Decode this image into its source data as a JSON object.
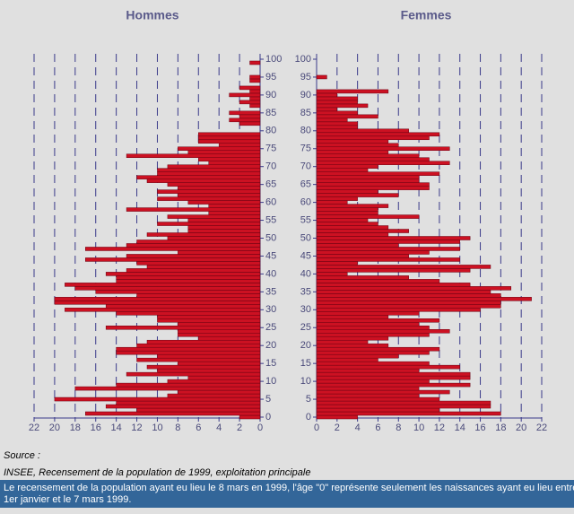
{
  "chart_data": [
    {
      "type": "hbar",
      "title": "Hommes",
      "x_reversed": true,
      "color": "#cc1122",
      "grid": true,
      "xlim": [
        0,
        22
      ],
      "xticks": [
        0,
        2,
        4,
        6,
        8,
        10,
        12,
        14,
        16,
        18,
        20,
        22
      ],
      "ylim": [
        0,
        100
      ],
      "yticks": [
        0,
        5,
        10,
        15,
        20,
        25,
        30,
        35,
        40,
        45,
        50,
        55,
        60,
        65,
        70,
        75,
        80,
        85,
        90,
        95,
        100
      ],
      "y": [
        0,
        1,
        2,
        3,
        4,
        5,
        6,
        7,
        8,
        9,
        10,
        11,
        12,
        13,
        14,
        15,
        16,
        17,
        18,
        19,
        20,
        21,
        22,
        23,
        24,
        25,
        26,
        27,
        28,
        29,
        30,
        31,
        32,
        33,
        34,
        35,
        36,
        37,
        38,
        39,
        40,
        41,
        42,
        43,
        44,
        45,
        46,
        47,
        48,
        49,
        50,
        51,
        52,
        53,
        54,
        55,
        56,
        57,
        58,
        59,
        60,
        61,
        62,
        63,
        64,
        65,
        66,
        67,
        68,
        69,
        70,
        71,
        72,
        73,
        74,
        75,
        76,
        77,
        78,
        79,
        80,
        81,
        82,
        83,
        84,
        85,
        86,
        87,
        88,
        89,
        90,
        91,
        92,
        93,
        94,
        95,
        96,
        97,
        98,
        99,
        100
      ],
      "values": [
        2,
        17,
        12,
        15,
        14,
        20,
        9,
        8,
        18,
        14,
        9,
        7,
        13,
        10,
        11,
        8,
        12,
        10,
        14,
        14,
        12,
        11,
        6,
        8,
        8,
        15,
        8,
        10,
        10,
        14,
        19,
        15,
        20,
        20,
        12,
        16,
        18,
        19,
        14,
        14,
        15,
        13,
        11,
        12,
        17,
        13,
        8,
        17,
        13,
        12,
        9,
        11,
        7,
        7,
        10,
        7,
        9,
        5,
        13,
        5,
        7,
        10,
        8,
        10,
        8,
        9,
        11,
        12,
        10,
        10,
        9,
        5,
        6,
        13,
        7,
        8,
        4,
        6,
        6,
        6,
        0,
        0,
        2,
        3,
        2,
        3,
        0,
        1,
        2,
        1,
        3,
        1,
        2,
        0,
        1,
        1,
        0,
        0,
        0,
        1,
        0
      ]
    },
    {
      "type": "hbar",
      "title": "Femmes",
      "x_reversed": false,
      "color": "#cc1122",
      "grid": true,
      "xlim": [
        0,
        22
      ],
      "xticks": [
        0,
        2,
        4,
        6,
        8,
        10,
        12,
        14,
        16,
        18,
        20,
        22
      ],
      "ylim": [
        0,
        100
      ],
      "yticks": [
        0,
        5,
        10,
        15,
        20,
        25,
        30,
        35,
        40,
        45,
        50,
        55,
        60,
        65,
        70,
        75,
        80,
        85,
        90,
        95,
        100
      ],
      "y": [
        0,
        1,
        2,
        3,
        4,
        5,
        6,
        7,
        8,
        9,
        10,
        11,
        12,
        13,
        14,
        15,
        16,
        17,
        18,
        19,
        20,
        21,
        22,
        23,
        24,
        25,
        26,
        27,
        28,
        29,
        30,
        31,
        32,
        33,
        34,
        35,
        36,
        37,
        38,
        39,
        40,
        41,
        42,
        43,
        44,
        45,
        46,
        47,
        48,
        49,
        50,
        51,
        52,
        53,
        54,
        55,
        56,
        57,
        58,
        59,
        60,
        61,
        62,
        63,
        64,
        65,
        66,
        67,
        68,
        69,
        70,
        71,
        72,
        73,
        74,
        75,
        76,
        77,
        78,
        79,
        80,
        81,
        82,
        83,
        84,
        85,
        86,
        87,
        88,
        89,
        90,
        91,
        92,
        93,
        94,
        95,
        96,
        97,
        98,
        99,
        100
      ],
      "values": [
        4,
        18,
        12,
        17,
        17,
        12,
        10,
        13,
        10,
        15,
        11,
        15,
        15,
        10,
        14,
        11,
        6,
        8,
        11,
        12,
        7,
        5,
        7,
        11,
        13,
        11,
        10,
        12,
        7,
        10,
        16,
        18,
        18,
        21,
        18,
        17,
        19,
        15,
        12,
        9,
        3,
        15,
        17,
        4,
        14,
        9,
        11,
        14,
        8,
        14,
        15,
        7,
        9,
        7,
        6,
        5,
        10,
        6,
        6,
        7,
        3,
        4,
        8,
        6,
        11,
        11,
        10,
        10,
        12,
        5,
        6,
        13,
        11,
        10,
        7,
        13,
        8,
        7,
        11,
        12,
        9,
        4,
        4,
        3,
        6,
        4,
        2,
        5,
        4,
        4,
        2,
        7,
        0,
        0,
        0,
        1,
        0,
        0,
        0,
        0,
        0
      ]
    }
  ],
  "source_label": "Source :",
  "source": "INSEE, Recensement de la population de 1999, exploitation principale",
  "footnote": [
    "Le recensement de la population ayant eu lieu le 8 mars en 1999, l'âge \"0\" représente seulement les naissances ayant eu lieu entre le",
    "1er janvier et le 7 mars 1999."
  ]
}
